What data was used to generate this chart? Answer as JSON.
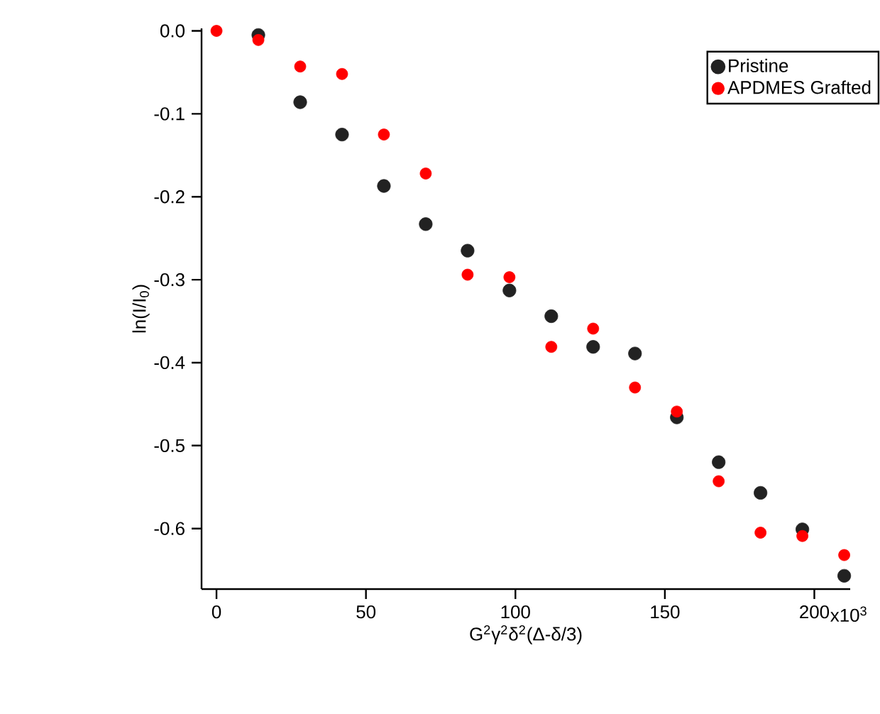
{
  "chart_data": {
    "type": "scatter",
    "xlabel": "G$^{2}$γ$^{2}$δ$^{2}$(Δ-δ/3)",
    "ylabel": "ln(I/I$_{0}$)",
    "x": [
      0,
      14,
      28,
      42,
      56,
      70,
      84,
      98,
      112,
      126,
      140,
      154,
      168,
      182,
      196,
      210
    ],
    "series": [
      {
        "name": "Pristine",
        "color": "#222222",
        "values": [
          null,
          -0.005,
          -0.086,
          -0.125,
          -0.187,
          -0.233,
          -0.265,
          -0.313,
          -0.344,
          -0.381,
          -0.389,
          -0.466,
          -0.52,
          -0.557,
          -0.601,
          -0.657
        ]
      },
      {
        "name": "APDMES Grafted",
        "color": "#ff0000",
        "values": [
          0,
          -0.011,
          -0.043,
          -0.052,
          -0.125,
          -0.172,
          -0.294,
          -0.297,
          -0.381,
          -0.359,
          -0.43,
          -0.459,
          -0.543,
          -0.605,
          -0.609,
          -0.632
        ]
      }
    ],
    "xlim": [
      -5,
      212
    ],
    "ylim": [
      -0.673,
      0.003
    ],
    "xticks": [
      0,
      50,
      100,
      150,
      200
    ],
    "annotations": [
      "x10$^{3}$"
    ],
    "yticks": [
      {
        "value": 0,
        "label": "0.0"
      },
      -0.1,
      -0.2,
      -0.3,
      -0.4,
      -0.5,
      -0.6
    ],
    "marker": "circle",
    "legend": "top right",
    "grid": false
  }
}
